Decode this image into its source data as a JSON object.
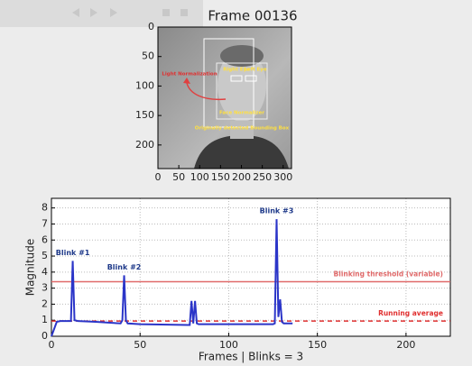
{
  "chart_data": [
    {
      "type": "image",
      "title": "Frame 00136",
      "xlim": [
        0,
        320
      ],
      "ylim": [
        240,
        0
      ],
      "xticks": [
        0,
        50,
        100,
        150,
        200,
        250,
        300
      ],
      "yticks": [
        0,
        50,
        100,
        150,
        200
      ],
      "annotations": [
        "Light Normalization",
        "Right Eye",
        "Left Eye",
        "Face Normalizer",
        "Originally detected Bounding Box"
      ]
    },
    {
      "type": "line",
      "xlabel": "Frames | Blinks = 3",
      "ylabel": "Magnitude",
      "x": [
        0,
        3,
        5,
        11,
        12,
        13,
        15,
        25,
        39,
        40,
        41,
        42,
        43,
        50,
        77,
        78,
        79,
        80,
        81,
        82,
        83,
        100,
        125,
        126,
        127,
        128,
        129,
        130,
        131,
        136
      ],
      "series": [
        {
          "color": "#2b35c8",
          "values": [
            0,
            0.9,
            0.95,
            0.95,
            4.7,
            1.0,
            0.95,
            0.9,
            0.8,
            1.0,
            3.8,
            1.0,
            0.8,
            0.75,
            0.7,
            0.7,
            2.2,
            0.8,
            2.2,
            0.8,
            0.75,
            0.75,
            0.75,
            0.8,
            7.3,
            1.2,
            2.3,
            0.9,
            0.8,
            0.8
          ]
        }
      ],
      "hlines": [
        {
          "label": "Blinking threshold (variable)",
          "value": 3.4,
          "color": "#e06a6a",
          "style": "solid"
        },
        {
          "label": "Running average",
          "value": 0.95,
          "color": "#e03030",
          "style": "dashed"
        }
      ],
      "blink_labels": [
        "Blink #1",
        "Blink #2",
        "Blink #3"
      ],
      "xlim": [
        0,
        225
      ],
      "ylim": [
        0,
        8.6
      ],
      "xticks": [
        0,
        50,
        100,
        150,
        200
      ],
      "yticks": [
        0,
        1,
        2,
        3,
        4,
        5,
        6,
        7,
        8
      ],
      "grid": true
    }
  ]
}
